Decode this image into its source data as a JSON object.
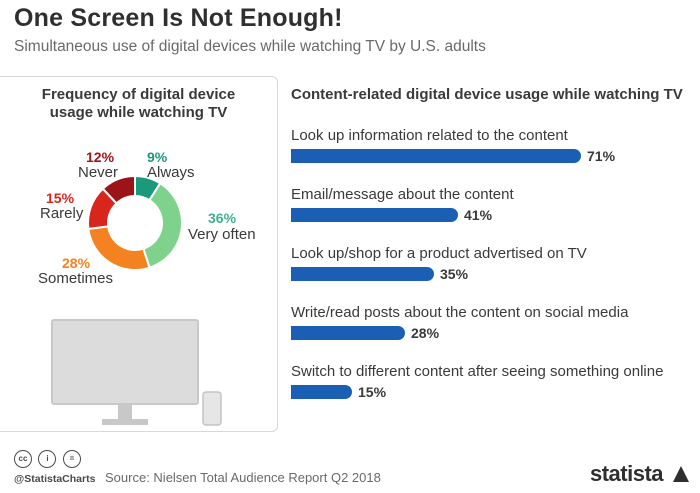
{
  "header": {
    "title": "One Screen Is Not Enough!",
    "subtitle": "Simultaneous use of digital devices while watching TV by U.S. adults"
  },
  "chart_data": [
    {
      "type": "pie",
      "title": "Frequency of digital device usage while watching TV",
      "donut": true,
      "slices": [
        {
          "label": "Always",
          "value": 9,
          "value_label": "9%",
          "color": "#1a9a7b"
        },
        {
          "label": "Very often",
          "value": 36,
          "value_label": "36%",
          "color": "#7ed28c"
        },
        {
          "label": "Sometimes",
          "value": 28,
          "value_label": "28%",
          "color": "#f58220"
        },
        {
          "label": "Rarely",
          "value": 15,
          "value_label": "15%",
          "color": "#d9261c"
        },
        {
          "label": "Never",
          "value": 12,
          "value_label": "12%",
          "color": "#9c1418"
        }
      ]
    },
    {
      "type": "bar",
      "orientation": "horizontal",
      "title": "Content-related digital device usage while watching TV",
      "categories": [
        "Look up information related to the content",
        "Email/message about the content",
        "Look up/shop for a product advertised on TV",
        "Write/read posts about the content on social media",
        "Switch to different content after seeing something online"
      ],
      "values": [
        71,
        41,
        35,
        28,
        15
      ],
      "value_labels": [
        "71%",
        "41%",
        "35%",
        "28%",
        "15%"
      ],
      "bar_color": "#1b5fb5",
      "xlim": [
        0,
        100
      ]
    }
  ],
  "footer": {
    "cc_icons": [
      "cc-icon",
      "by-icon",
      "nd-icon"
    ],
    "cc_glyphs": [
      "cc",
      "i",
      "="
    ],
    "handle": "@StatistaCharts",
    "source": "Source: Nielsen Total Audience Report Q2 2018",
    "logo": "statista"
  }
}
